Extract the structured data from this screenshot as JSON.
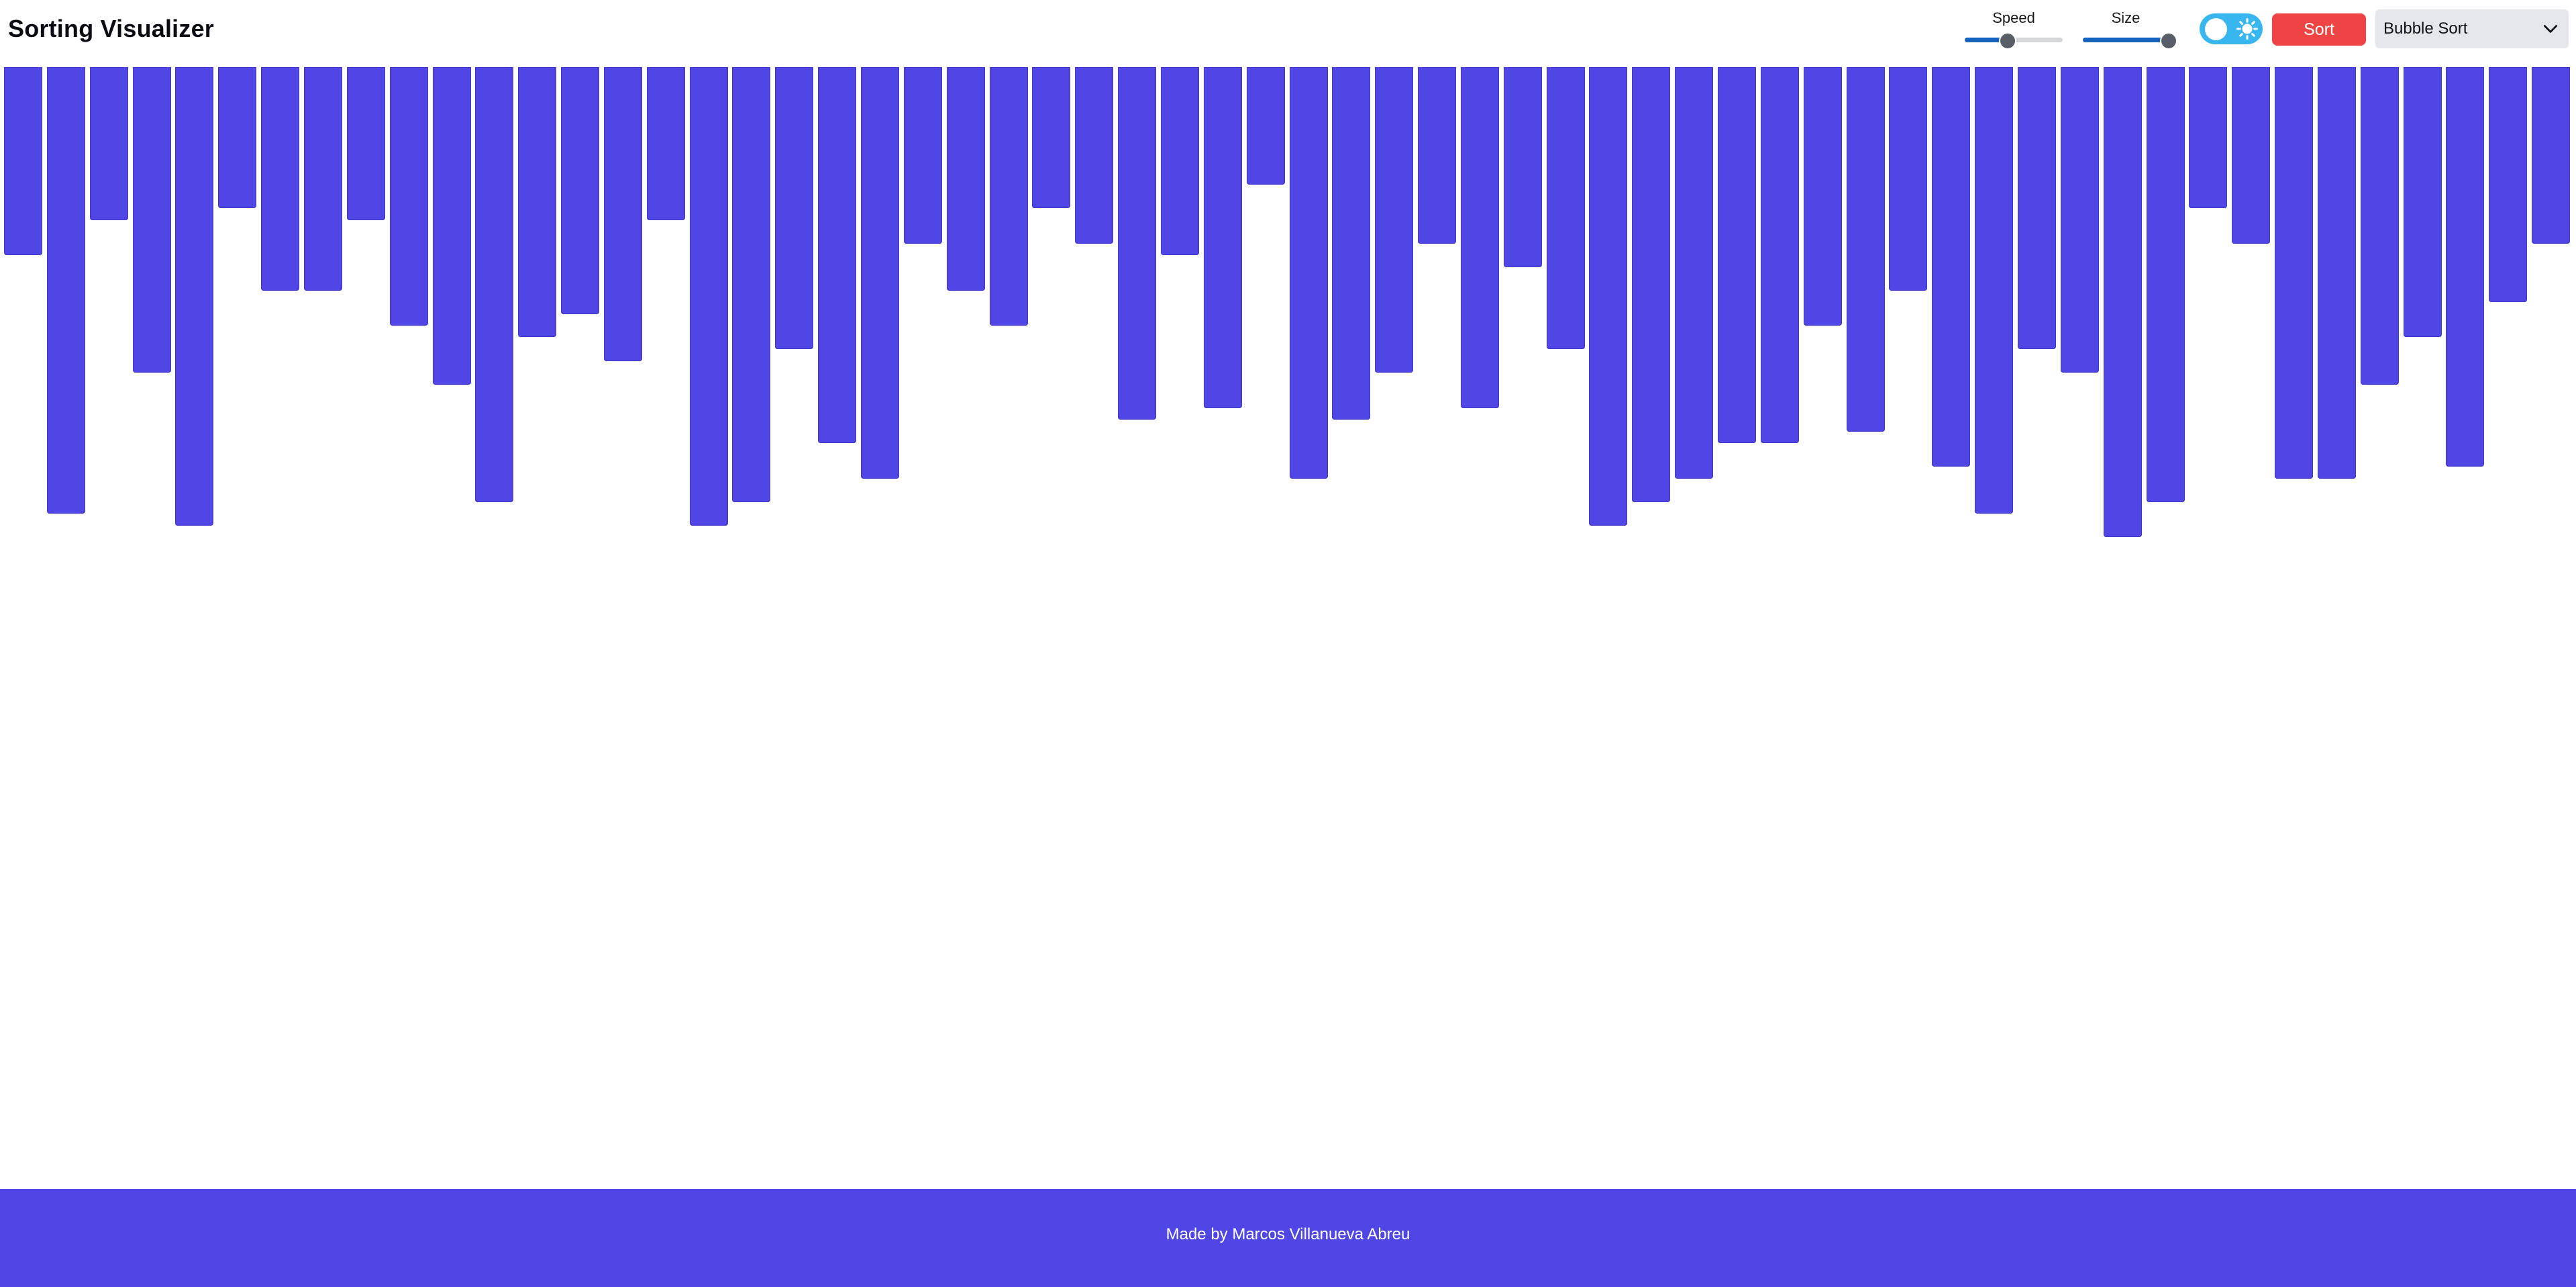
{
  "app": {
    "title": "Sorting Visualizer"
  },
  "controls": {
    "speed": {
      "label": "Speed",
      "value_fraction": 0.44
    },
    "size": {
      "label": "Size",
      "value_fraction": 1.0
    },
    "theme_toggle": {
      "icon": "sun-icon",
      "on": true
    },
    "sort_button": {
      "label": "Sort"
    },
    "algorithm": {
      "selected": "Bubble Sort"
    }
  },
  "bars": {
    "values": [
      16,
      38,
      13,
      26,
      39,
      12,
      19,
      19,
      13,
      22,
      27,
      37,
      23,
      21,
      25,
      13,
      39,
      37,
      24,
      32,
      35,
      15,
      19,
      22,
      12,
      15,
      30,
      16,
      29,
      10,
      35,
      30,
      26,
      15,
      29,
      17,
      24,
      39,
      37,
      35,
      32,
      32,
      22,
      31,
      19,
      34,
      38,
      24,
      26,
      40,
      37,
      12,
      15,
      35,
      35,
      27,
      23,
      34,
      20,
      15
    ],
    "max_value": 40
  },
  "footer": {
    "text": "Made by Marcos Villanueva Abreu"
  },
  "colors": {
    "accent": "#4f46e5",
    "sort_button": "#ef4444",
    "toggle": "#38b6f0",
    "slider_fill": "#1565c0",
    "select_bg": "#e5e7eb"
  }
}
